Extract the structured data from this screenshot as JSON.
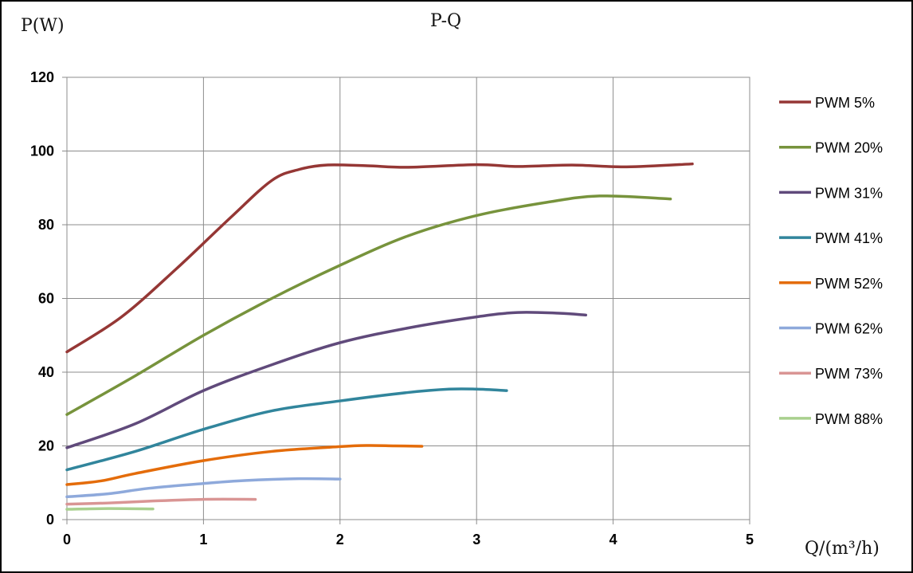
{
  "chart_data": {
    "type": "line",
    "title": "P-Q",
    "ylabel": "P(W)",
    "xlabel": "Q/(m³/h)",
    "xlim": [
      0,
      5
    ],
    "ylim": [
      0,
      120
    ],
    "xticks": [
      0,
      1,
      2,
      3,
      4,
      5
    ],
    "yticks": [
      0,
      20,
      40,
      60,
      80,
      100,
      120
    ],
    "grid": true,
    "legend_position": "right",
    "series": [
      {
        "name": "PWM 5%",
        "color": "#953735",
        "x": [
          0,
          0.4,
          0.8,
          1.2,
          1.5,
          1.7,
          1.9,
          2.2,
          2.5,
          3.0,
          3.3,
          3.7,
          4.1,
          4.58
        ],
        "y": [
          45.5,
          55,
          68,
          82,
          92,
          95,
          96.2,
          96,
          95.6,
          96.3,
          95.8,
          96.2,
          95.7,
          96.5
        ]
      },
      {
        "name": "PWM 20%",
        "color": "#77933C",
        "x": [
          0,
          0.5,
          1.0,
          1.5,
          2.0,
          2.5,
          3.0,
          3.5,
          3.9,
          4.42
        ],
        "y": [
          28.5,
          39,
          50,
          60,
          69,
          77,
          82.5,
          86,
          87.8,
          87
        ]
      },
      {
        "name": "PWM 31%",
        "color": "#604A7B",
        "x": [
          0,
          0.5,
          1.0,
          1.5,
          2.0,
          2.5,
          3.0,
          3.3,
          3.6,
          3.8
        ],
        "y": [
          19.5,
          26,
          35,
          42,
          48,
          52,
          55,
          56.2,
          56,
          55.5
        ]
      },
      {
        "name": "PWM 41%",
        "color": "#31859C",
        "x": [
          0,
          0.5,
          1.0,
          1.5,
          2.0,
          2.5,
          2.8,
          3.0,
          3.22
        ],
        "y": [
          13.5,
          18.5,
          24.5,
          29.5,
          32.2,
          34.5,
          35.4,
          35.4,
          35
        ]
      },
      {
        "name": "PWM 52%",
        "color": "#E46C0A",
        "x": [
          0,
          0.25,
          0.5,
          1.0,
          1.5,
          2.0,
          2.2,
          2.4,
          2.6
        ],
        "y": [
          9.5,
          10.5,
          12.5,
          16,
          18.5,
          19.8,
          20.1,
          20,
          19.9
        ]
      },
      {
        "name": "PWM 62%",
        "color": "#8EA9DB",
        "x": [
          0,
          0.3,
          0.6,
          1.0,
          1.3,
          1.7,
          2.0
        ],
        "y": [
          6.2,
          7,
          8.5,
          9.8,
          10.6,
          11.1,
          11
        ]
      },
      {
        "name": "PWM 73%",
        "color": "#D99594",
        "x": [
          0,
          0.3,
          0.6,
          1.0,
          1.38
        ],
        "y": [
          4.2,
          4.5,
          5,
          5.5,
          5.5
        ]
      },
      {
        "name": "PWM 88%",
        "color": "#A9D08E",
        "x": [
          0,
          0.3,
          0.63
        ],
        "y": [
          2.8,
          3,
          2.9
        ]
      }
    ]
  }
}
